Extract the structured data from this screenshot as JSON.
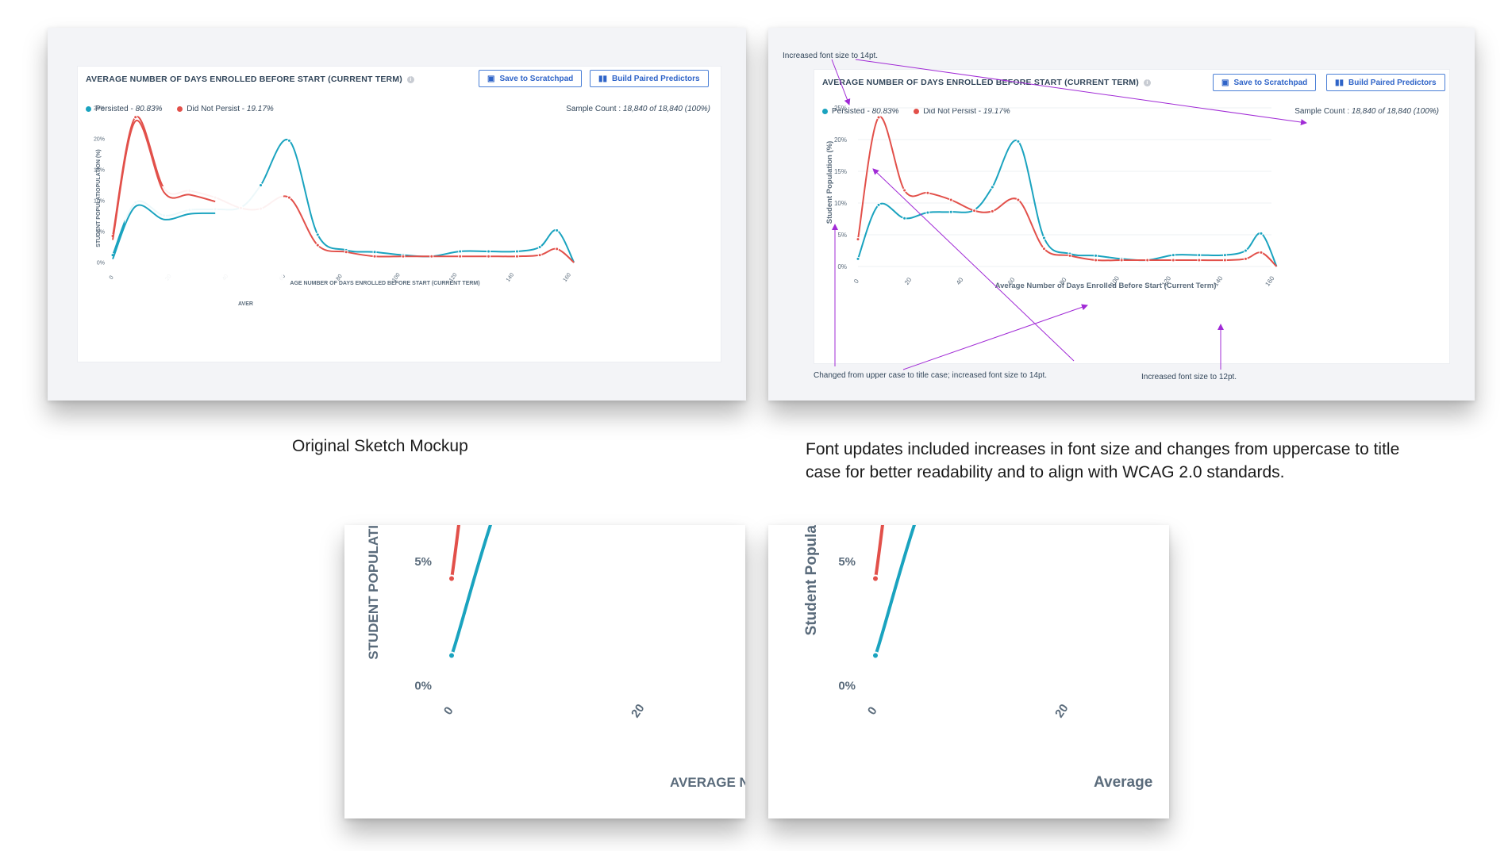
{
  "colors": {
    "persisted": "#1aa3bf",
    "did_not_persist": "#e2504a",
    "annotation": "#a12bd6",
    "axis_text": "#5a6b7b",
    "button_blue": "#2f64c8"
  },
  "chart_header": {
    "title": "AVERAGE NUMBER OF DAYS ENROLLED BEFORE START (CURRENT TERM)",
    "save_button": "Save to Scratchpad",
    "build_button": "Build Paired Predictors",
    "legend_persisted_label": "Persisted - ",
    "legend_persisted_value": "80.83%",
    "legend_dnp_label": "Did Not Persist - ",
    "legend_dnp_value": "19.17%",
    "sample_label": "Sample Count : ",
    "sample_value": "18,840 of 18,840 (100%)"
  },
  "original_mockup": {
    "ylabel": "STUDENT POPULATIOPULATION (%)",
    "xlabel": "AGE NUMBER OF DAYS ENROLLED BEFORE START (CURRENT TERM)",
    "xlabel_fragment": "AVER",
    "caption": "Original Sketch Mockup"
  },
  "updated_mockup": {
    "ylabel": "Student Population (%)",
    "xlabel": "Average Number of Days Enrolled Before Start (Current Term)",
    "notes": {
      "title_font": "Increased font size to 14pt.",
      "case_change": "Changed from upper case to title case; increased font size to 14pt.",
      "tick_font": "Increased font size to 12pt."
    },
    "caption": "Font updates included increases in font size and changes from uppercase to title case for better readability and to align with WCAG 2.0 standards."
  },
  "zoom_original": {
    "ylabel": "STUDENT POPULATI",
    "xlabel": "AVERAGE NU"
  },
  "zoom_updated": {
    "ylabel": "Student Popula",
    "xlabel": "Average"
  },
  "chart_data": {
    "type": "line",
    "title": "AVERAGE NUMBER OF DAYS ENROLLED BEFORE START (CURRENT TERM)",
    "xlabel": "Average Number of Days Enrolled Before Start (Current Term)",
    "ylabel": "Student Population (%)",
    "xlim": [
      0,
      160
    ],
    "ylim": [
      0,
      25
    ],
    "x_ticks": [
      "0",
      "20",
      "40",
      "60",
      "80",
      "100",
      "120",
      "140",
      "160"
    ],
    "y_ticks": [
      "0%",
      "5%",
      "10%",
      "15%",
      "20%",
      "25%"
    ],
    "legend": "top-left",
    "series": [
      {
        "name": "Persisted",
        "share": "80.83%",
        "x": [
          0,
          8,
          18,
          27,
          36,
          45,
          52,
          62,
          72,
          82,
          92,
          102,
          112,
          122,
          132,
          142,
          150,
          156,
          162
        ],
        "y": [
          1.2,
          9.7,
          7.6,
          8.5,
          8.6,
          8.9,
          12.5,
          19.7,
          4.5,
          2.0,
          1.7,
          1.2,
          1.0,
          1.8,
          1.8,
          1.8,
          2.5,
          5.2,
          0.0
        ]
      },
      {
        "name": "Did Not Persist",
        "share": "19.17%",
        "x": [
          0,
          8,
          18,
          27,
          36,
          45,
          52,
          62,
          72,
          82,
          92,
          102,
          112,
          122,
          132,
          142,
          150,
          156,
          162
        ],
        "y": [
          4.3,
          23.5,
          12.0,
          11.6,
          10.5,
          8.8,
          8.7,
          10.5,
          2.8,
          1.7,
          1.0,
          1.0,
          1.0,
          1.0,
          1.0,
          1.0,
          1.2,
          2.2,
          0.0
        ]
      }
    ]
  }
}
